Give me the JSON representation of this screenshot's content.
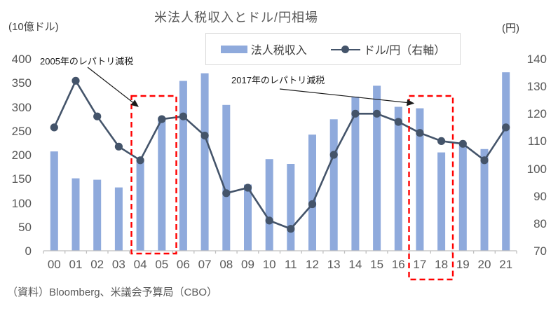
{
  "header": {
    "title": "米法人税収入とドル/円相場",
    "left_unit": "(10億ドル)",
    "right_unit": "(円)"
  },
  "legend": {
    "bar_label": "法人税収入",
    "line_label": "ドル/円（右軸）"
  },
  "annotations": [
    {
      "text": "2005年のレパトリ減税",
      "highlight_years": [
        "04",
        "05"
      ]
    },
    {
      "text": "2017年のレパトリ減税",
      "highlight_years": [
        "17",
        "18"
      ]
    }
  ],
  "source": "（資料）Bloomberg、米議会予算局（CBO）",
  "colors": {
    "bar": "#8FAADC",
    "line": "#44546A",
    "highlight": "#FF0000",
    "axis": "#BFBFBF",
    "text": "#595959"
  },
  "chart_data": {
    "type": "bar+line",
    "title": "米法人税収入とドル/円相場",
    "categories": [
      "00",
      "01",
      "02",
      "03",
      "04",
      "05",
      "06",
      "07",
      "08",
      "09",
      "10",
      "11",
      "12",
      "13",
      "14",
      "15",
      "16",
      "17",
      "18",
      "19",
      "20",
      "21"
    ],
    "series": [
      {
        "name": "法人税収入",
        "type": "bar",
        "axis": "left",
        "unit": "10億ドル",
        "values": [
          207,
          151,
          148,
          132,
          189,
          278,
          354,
          370,
          304,
          138,
          191,
          181,
          242,
          274,
          321,
          344,
          300,
          297,
          205,
          220,
          212,
          372
        ]
      },
      {
        "name": "ドル/円（右軸）",
        "type": "line",
        "axis": "right",
        "unit": "円",
        "values": [
          115,
          132,
          119,
          108,
          103,
          118,
          119,
          112,
          91,
          93,
          81,
          78,
          87,
          105,
          120,
          120,
          117,
          113,
          110,
          109,
          103,
          115
        ]
      }
    ],
    "left_axis": {
      "label": "(10億ドル)",
      "min": 0,
      "max": 400,
      "ticks": [
        0,
        50,
        100,
        150,
        200,
        250,
        300,
        350,
        400
      ]
    },
    "right_axis": {
      "label": "(円)",
      "min": 70,
      "max": 140,
      "ticks": [
        70,
        80,
        90,
        100,
        110,
        120,
        130,
        140
      ]
    },
    "legend_position": "top",
    "grid": false
  }
}
